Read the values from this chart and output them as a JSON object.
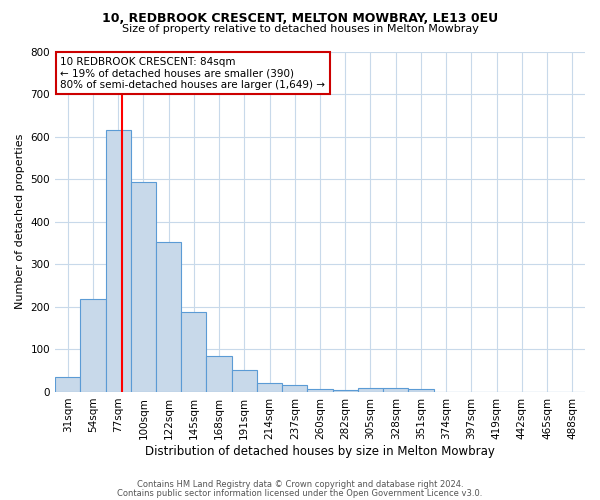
{
  "title1": "10, REDBROOK CRESCENT, MELTON MOWBRAY, LE13 0EU",
  "title2": "Size of property relative to detached houses in Melton Mowbray",
  "xlabel": "Distribution of detached houses by size in Melton Mowbray",
  "ylabel": "Number of detached properties",
  "footer1": "Contains HM Land Registry data © Crown copyright and database right 2024.",
  "footer2": "Contains public sector information licensed under the Open Government Licence v3.0.",
  "categories": [
    "31sqm",
    "54sqm",
    "77sqm",
    "100sqm",
    "122sqm",
    "145sqm",
    "168sqm",
    "191sqm",
    "214sqm",
    "237sqm",
    "260sqm",
    "282sqm",
    "305sqm",
    "328sqm",
    "351sqm",
    "374sqm",
    "397sqm",
    "419sqm",
    "442sqm",
    "465sqm",
    "488sqm"
  ],
  "values": [
    35,
    218,
    615,
    493,
    352,
    187,
    85,
    52,
    22,
    16,
    8,
    5,
    10,
    10,
    6,
    0,
    0,
    0,
    0,
    0,
    0
  ],
  "bar_color": "#c8d9ea",
  "bar_edge_color": "#5b9bd5",
  "red_line_x": 2.15,
  "annotation_line1": "10 REDBROOK CRESCENT: 84sqm",
  "annotation_line2": "← 19% of detached houses are smaller (390)",
  "annotation_line3": "80% of semi-detached houses are larger (1,649) →",
  "annotation_box_color": "#ffffff",
  "annotation_box_edge_color": "#cc0000",
  "ylim": [
    0,
    800
  ],
  "yticks": [
    0,
    100,
    200,
    300,
    400,
    500,
    600,
    700,
    800
  ],
  "background_color": "#ffffff",
  "grid_color": "#c8d9ea",
  "title1_fontsize": 9.0,
  "title2_fontsize": 8.0,
  "ylabel_fontsize": 8.0,
  "xlabel_fontsize": 8.5,
  "tick_fontsize": 7.5,
  "footer_fontsize": 6.0,
  "ann_fontsize": 7.5
}
